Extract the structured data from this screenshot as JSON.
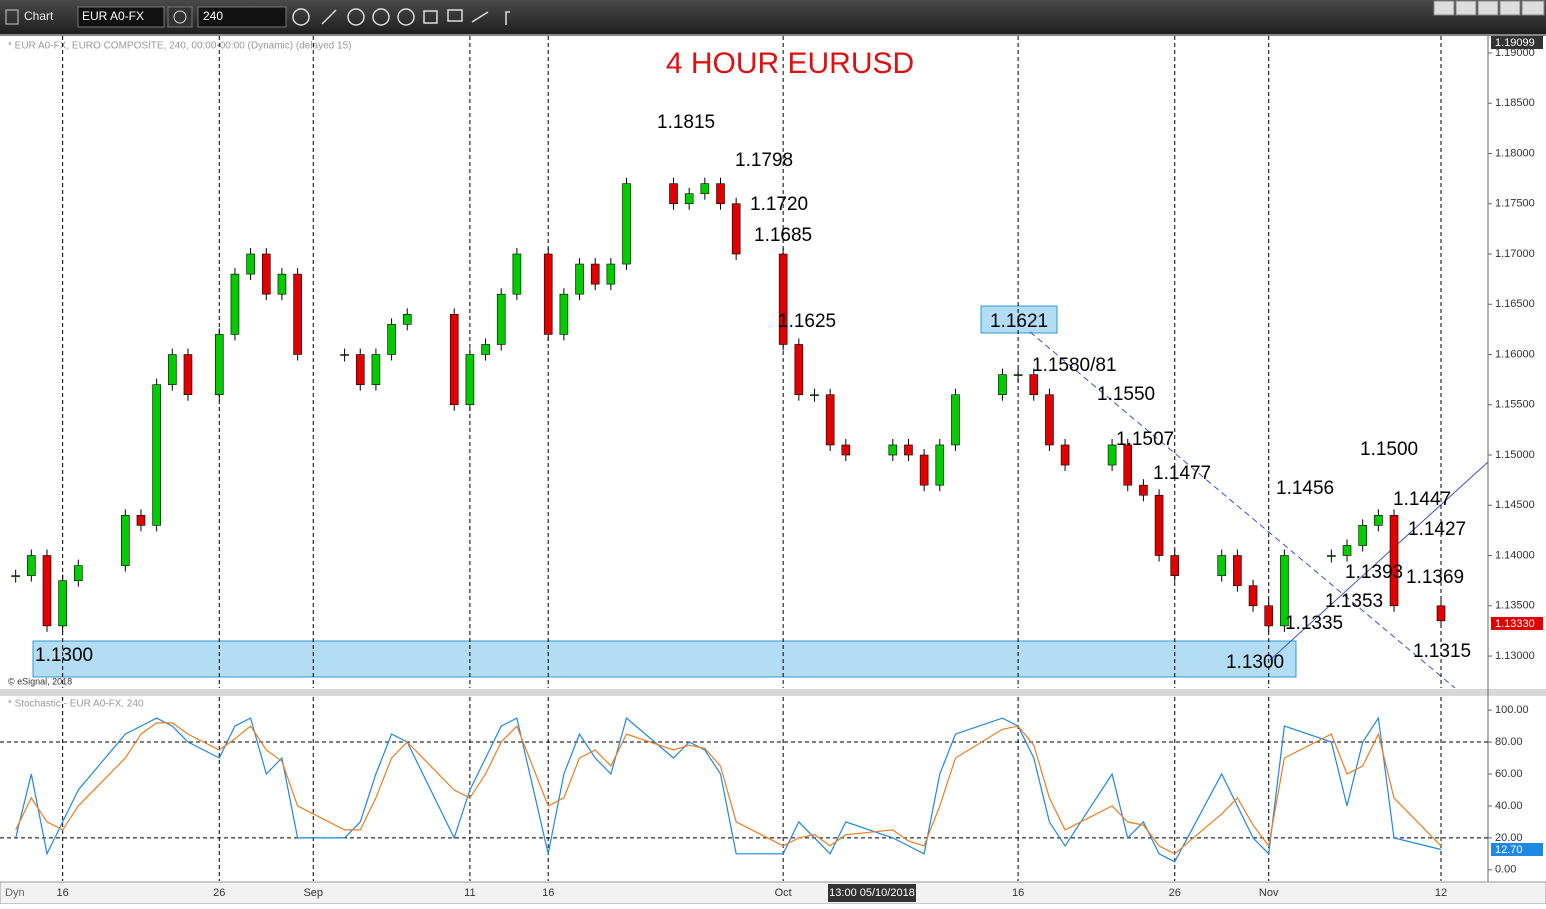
{
  "ui": {
    "toolbar_title": "Chart",
    "symbol": "EUR A0-FX",
    "interval": "240",
    "price_header": "* EUR A0-FX, EURO COMPOSITE, 240, 00:00-00:00 (Dynamic) (delayed 15)",
    "copyright": "© eSignal, 2018",
    "stoch_header": "* Stochastic - EUR A0-FX, 240",
    "top_price_tag": "1.19099",
    "last_price_tag": "1.13330",
    "stoch_tag": "12.70",
    "cursor_time": "13:00 05/10/2018",
    "mode": "Dyn"
  },
  "chart_data": [
    {
      "type": "candlestick",
      "title": "4 HOUR EURUSD",
      "up_color": "#00cc00",
      "down_color": "#e00000",
      "x": [
        "08-13",
        "08-14",
        "08-15",
        "08-16",
        "08-17",
        "08-20",
        "08-21",
        "08-22",
        "08-23",
        "08-24",
        "08-26",
        "08-27",
        "08-28",
        "08-29",
        "08-30",
        "08-31",
        "09-03",
        "09-04",
        "09-05",
        "09-06",
        "09-07",
        "09-10",
        "09-11",
        "09-12",
        "09-13",
        "09-14",
        "09-16",
        "09-17",
        "09-18",
        "09-19",
        "09-20",
        "09-21",
        "09-24",
        "09-25",
        "09-26",
        "09-27",
        "09-28",
        "10-01",
        "10-02",
        "10-03",
        "10-04",
        "10-05",
        "10-08",
        "10-09",
        "10-10",
        "10-11",
        "10-12",
        "10-15",
        "10-16",
        "10-17",
        "10-18",
        "10-19",
        "10-22",
        "10-23",
        "10-24",
        "10-25",
        "10-26",
        "10-29",
        "10-30",
        "10-31",
        "11-01",
        "11-02",
        "11-05",
        "11-06",
        "11-07",
        "11-08",
        "11-09",
        "11-12"
      ],
      "values": [
        1.138,
        1.14,
        1.133,
        1.1375,
        1.139,
        1.144,
        1.143,
        1.157,
        1.16,
        1.156,
        1.162,
        1.168,
        1.17,
        1.166,
        1.168,
        1.16,
        1.16,
        1.157,
        1.16,
        1.163,
        1.164,
        1.155,
        1.16,
        1.161,
        1.166,
        1.17,
        1.162,
        1.166,
        1.169,
        1.167,
        1.169,
        1.177,
        1.175,
        1.176,
        1.177,
        1.175,
        1.17,
        1.161,
        1.156,
        1.156,
        1.151,
        1.15,
        1.151,
        1.15,
        1.147,
        1.151,
        1.156,
        1.158,
        1.158,
        1.156,
        1.151,
        1.149,
        1.151,
        1.147,
        1.146,
        1.14,
        1.138,
        1.14,
        1.137,
        1.135,
        1.133,
        1.14,
        1.14,
        1.141,
        1.143,
        1.144,
        1.135,
        1.1335
      ],
      "xlim": [
        "08-12",
        "11-15"
      ],
      "xticks": [
        {
          "value": "08-16",
          "label": "16"
        },
        {
          "value": "08-26",
          "label": "26"
        },
        {
          "value": "09-01",
          "label": "Sep"
        },
        {
          "value": "09-11",
          "label": "11"
        },
        {
          "value": "09-16",
          "label": "16"
        },
        {
          "value": "10-01",
          "label": "Oct"
        },
        {
          "value": "10-16",
          "label": "16"
        },
        {
          "value": "10-26",
          "label": "26"
        },
        {
          "value": "11-01",
          "label": "Nov"
        },
        {
          "value": "11-12",
          "label": "12"
        }
      ],
      "ylim": [
        1.12682,
        1.19169
      ],
      "yticks": [
        {
          "value": 1.13,
          "label": "1.13000"
        },
        {
          "value": 1.135,
          "label": "1.13500"
        },
        {
          "value": 1.14,
          "label": "1.14000"
        },
        {
          "value": 1.145,
          "label": "1.14500"
        },
        {
          "value": 1.15,
          "label": "1.15000"
        },
        {
          "value": 1.155,
          "label": "1.15500"
        },
        {
          "value": 1.16,
          "label": "1.16000"
        },
        {
          "value": 1.165,
          "label": "1.16500"
        },
        {
          "value": 1.17,
          "label": "1.17000"
        },
        {
          "value": 1.175,
          "label": "1.17500"
        },
        {
          "value": 1.18,
          "label": "1.18000"
        },
        {
          "value": 1.185,
          "label": "1.18500"
        },
        {
          "value": 1.19,
          "label": "1.19000"
        }
      ],
      "annotations": [
        "1.1815",
        "1.1798",
        "1.1720",
        "1.1685",
        "1.1625",
        "1.1621",
        "1.1580/81",
        "1.1550",
        "1.1507",
        "1.1477",
        "1.1456",
        "1.1500",
        "1.1447",
        "1.1427",
        "1.1393",
        "1.1369",
        "1.1353",
        "1.1335",
        "1.1315",
        "1.1300",
        "1.1300"
      ]
    },
    {
      "type": "line",
      "x": [
        "08-13",
        "08-14",
        "08-15",
        "08-16",
        "08-17",
        "08-20",
        "08-21",
        "08-22",
        "08-23",
        "08-24",
        "08-26",
        "08-27",
        "08-28",
        "08-29",
        "08-30",
        "08-31",
        "09-03",
        "09-04",
        "09-05",
        "09-06",
        "09-07",
        "09-10",
        "09-11",
        "09-12",
        "09-13",
        "09-14",
        "09-16",
        "09-17",
        "09-18",
        "09-19",
        "09-20",
        "09-21",
        "09-24",
        "09-25",
        "09-26",
        "09-27",
        "09-28",
        "10-01",
        "10-02",
        "10-03",
        "10-04",
        "10-05",
        "10-08",
        "10-09",
        "10-10",
        "10-11",
        "10-12",
        "10-15",
        "10-16",
        "10-17",
        "10-18",
        "10-19",
        "10-22",
        "10-23",
        "10-24",
        "10-25",
        "10-26",
        "10-29",
        "10-30",
        "10-31",
        "11-01",
        "11-02",
        "11-05",
        "11-06",
        "11-07",
        "11-08",
        "11-09",
        "11-12"
      ],
      "series": [
        {
          "color": "#1e88e5",
          "values": [
            20,
            60,
            10,
            30,
            50,
            85,
            90,
            95,
            90,
            80,
            70,
            90,
            95,
            60,
            70,
            20,
            20,
            30,
            60,
            85,
            80,
            20,
            50,
            70,
            90,
            95,
            10,
            60,
            85,
            70,
            60,
            95,
            70,
            80,
            75,
            60,
            10,
            10,
            30,
            20,
            10,
            30,
            20,
            15,
            10,
            60,
            85,
            95,
            90,
            70,
            30,
            15,
            60,
            20,
            30,
            10,
            5,
            60,
            40,
            20,
            10,
            90,
            80,
            40,
            80,
            95,
            20,
            12.7
          ]
        },
        {
          "color": "#f07c1e",
          "values": [
            25,
            45,
            30,
            25,
            40,
            70,
            85,
            92,
            92,
            85,
            75,
            82,
            90,
            75,
            68,
            40,
            25,
            25,
            45,
            70,
            80,
            50,
            45,
            60,
            80,
            90,
            40,
            45,
            70,
            75,
            65,
            85,
            75,
            78,
            76,
            65,
            30,
            15,
            20,
            22,
            15,
            22,
            25,
            18,
            15,
            40,
            70,
            88,
            90,
            78,
            45,
            25,
            40,
            30,
            28,
            15,
            10,
            35,
            45,
            28,
            15,
            70,
            85,
            60,
            65,
            85,
            45,
            15
          ]
        }
      ],
      "ylim": [
        -7,
        108.2
      ],
      "yticks": [
        {
          "value": 0,
          "label": "0.00"
        },
        {
          "value": 20,
          "label": "20.00"
        },
        {
          "value": 40,
          "label": "40.00"
        },
        {
          "value": 60,
          "label": "60.00"
        },
        {
          "value": 80,
          "label": "80.00"
        },
        {
          "value": 100,
          "label": "100.00"
        }
      ]
    }
  ]
}
